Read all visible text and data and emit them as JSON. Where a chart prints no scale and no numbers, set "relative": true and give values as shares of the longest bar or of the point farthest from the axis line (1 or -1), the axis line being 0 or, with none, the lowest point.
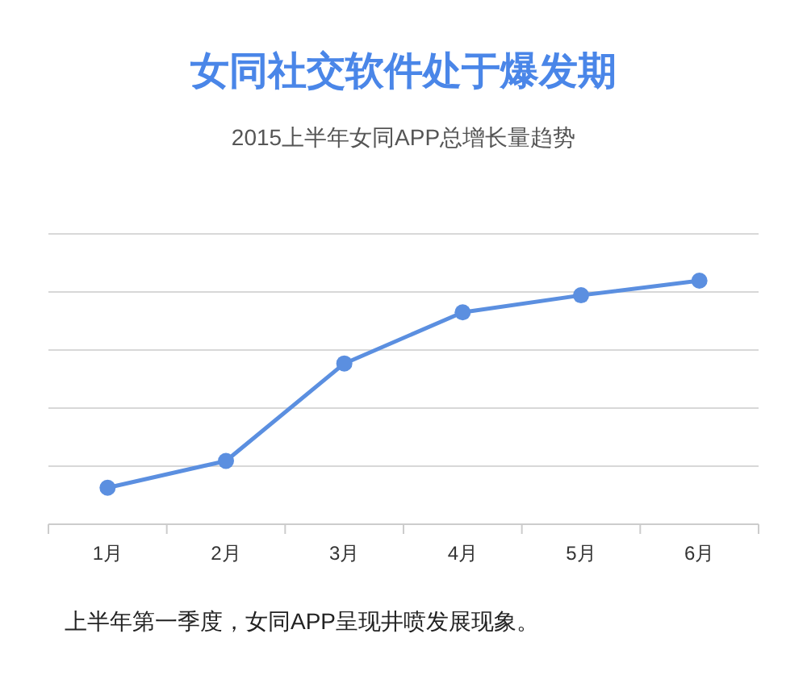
{
  "chart_data": {
    "type": "line",
    "title": "女同社交软件处于爆发期",
    "subtitle": "2015上半年女同APP总增长量趋势",
    "categories": [
      "1月",
      "2月",
      "3月",
      "4月",
      "5月",
      "6月"
    ],
    "series": [
      {
        "color": "#5b8fe0",
        "values": [
          0.15,
          0.26,
          0.66,
          0.87,
          0.94,
          1.0
        ]
      }
    ],
    "relative": true,
    "grid": "y",
    "marker": "circle",
    "line_style": "solid",
    "annotations": [
      "上半年第一季度，女同APP呈现井喷发展现象。"
    ]
  }
}
